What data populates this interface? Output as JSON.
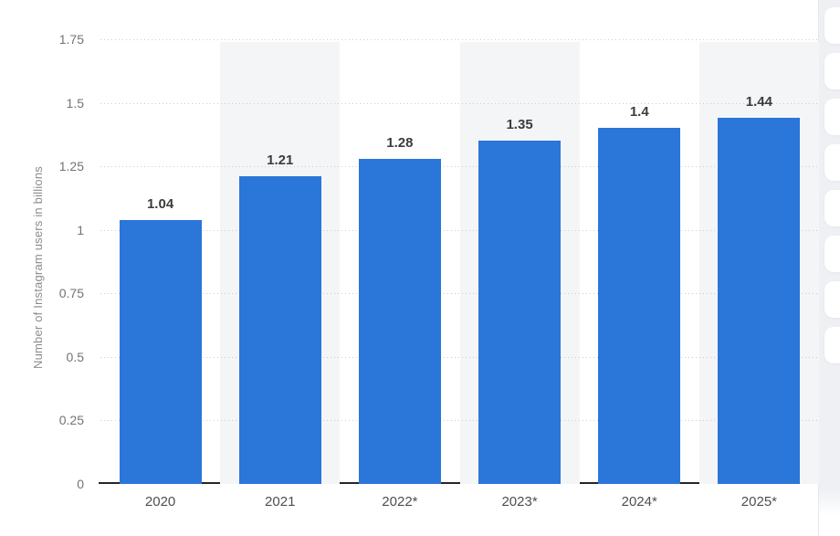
{
  "chart_data": {
    "type": "bar",
    "title": "",
    "ylabel": "Number of Instagram users in billions",
    "xlabel": "",
    "categories": [
      "2020",
      "2021",
      "2022*",
      "2023*",
      "2024*",
      "2025*"
    ],
    "values": [
      1.04,
      1.21,
      1.28,
      1.35,
      1.4,
      1.44
    ],
    "value_labels": [
      "1.04",
      "1.21",
      "1.28",
      "1.35",
      "1.4",
      "1.44"
    ],
    "ylim": [
      0,
      1.75
    ],
    "yticks": [
      {
        "value": 0,
        "label": "0"
      },
      {
        "value": 0.25,
        "label": "0.25"
      },
      {
        "value": 0.5,
        "label": "0.5"
      },
      {
        "value": 0.75,
        "label": "0.75"
      },
      {
        "value": 1,
        "label": "1"
      },
      {
        "value": 1.25,
        "label": "1.25"
      },
      {
        "value": 1.5,
        "label": "1.5"
      },
      {
        "value": 1.75,
        "label": "1.75"
      }
    ],
    "grid": "horizontal-dotted",
    "legend_position": "none",
    "banded_columns": [
      1,
      3,
      5
    ],
    "colors": {
      "bar": "#2b76d9",
      "band": "#f4f5f7",
      "gridline": "#cbcbcd",
      "axis_line": "#262626",
      "tick_label": "#72727a",
      "value_label": "#3c3c3c",
      "x_label": "#4f4f4f",
      "y_title": "#8c8c8c"
    }
  },
  "right_panel": {
    "card_count": 8,
    "background": "#eef0f3",
    "card_color": "#ffffff"
  }
}
